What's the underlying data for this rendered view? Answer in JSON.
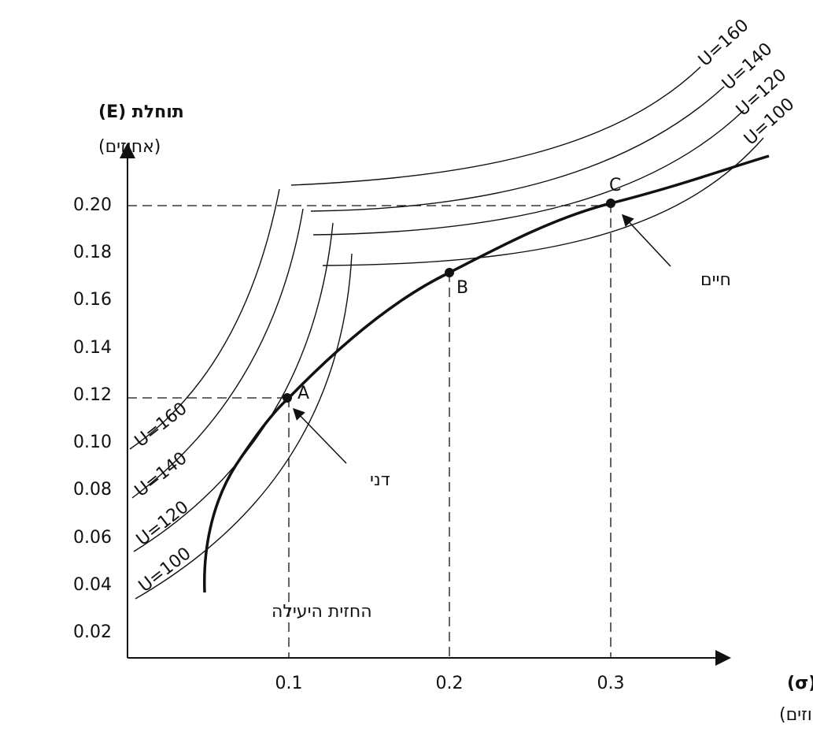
{
  "axes": {
    "y": {
      "title": "תוחלת (E)",
      "unit": "(אחוזים)",
      "ticks": [
        "0.20",
        "0.18",
        "0.16",
        "0.14",
        "0.12",
        "0.10",
        "0.08",
        "0.06",
        "0.04",
        "0.02"
      ]
    },
    "x": {
      "title": "סיכון (σ)",
      "unit": "(אחוזים)",
      "ticks": [
        "0.1",
        "0.2",
        "0.3"
      ]
    }
  },
  "points": [
    "A",
    "B",
    "C"
  ],
  "curve_labels": {
    "upper": [
      "U=160",
      "U=140",
      "U=120",
      "U=100"
    ],
    "lower": [
      "U=160",
      "U=140",
      "U=120",
      "U=100"
    ]
  },
  "annotations": {
    "frontier": "החזית היעילה",
    "dani": "דני",
    "haim": "חיים"
  }
}
